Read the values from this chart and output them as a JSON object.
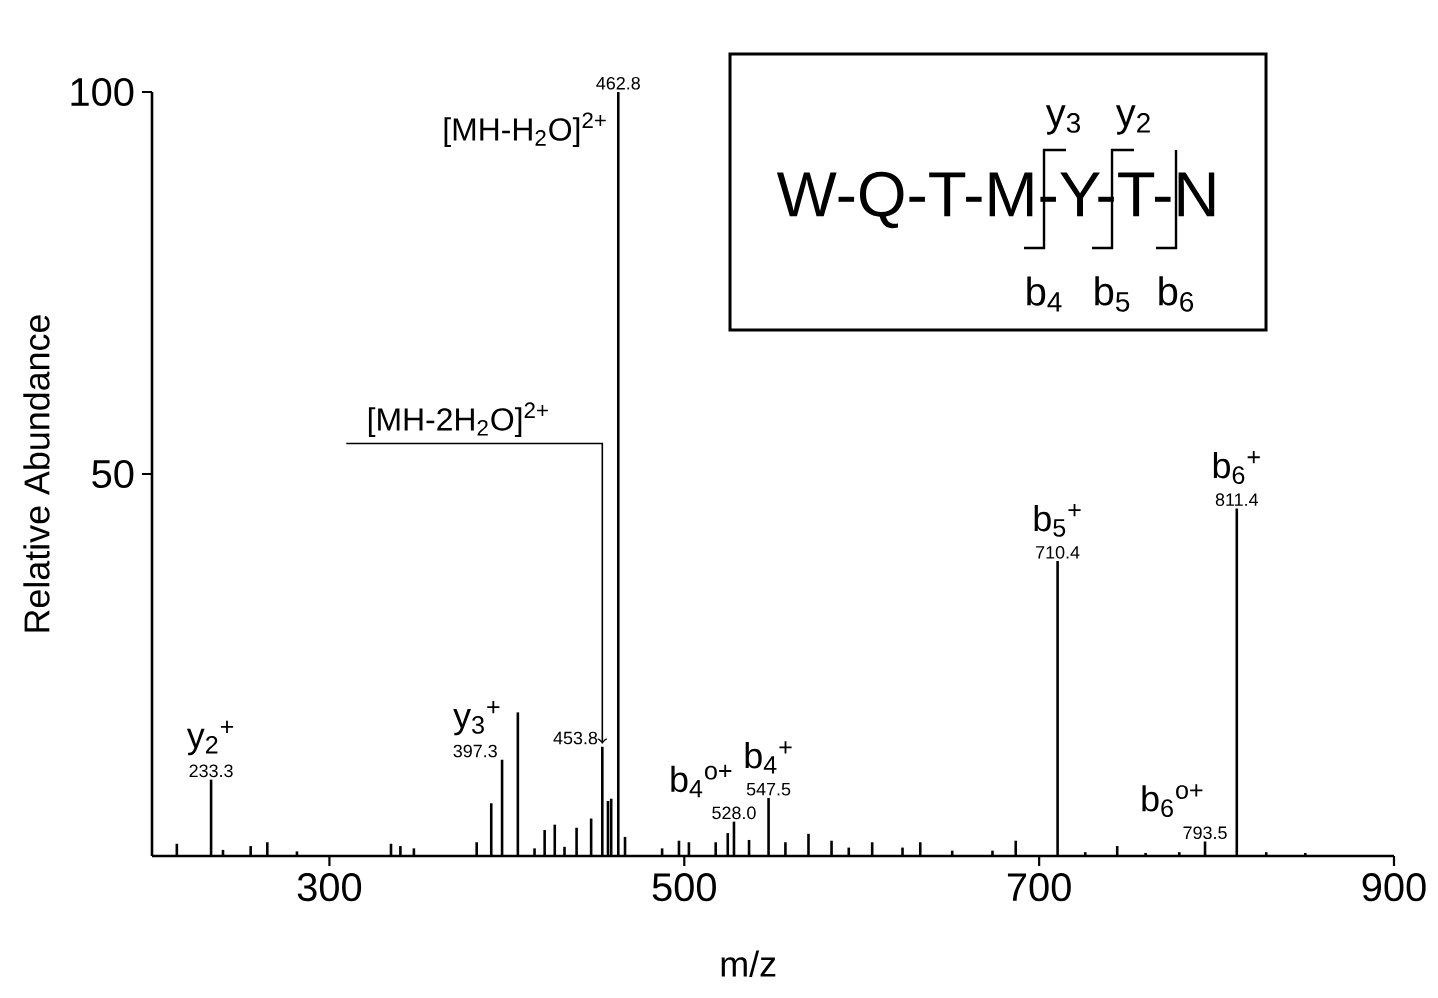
{
  "chart_data": {
    "type": "bar",
    "xlabel": "m/z",
    "ylabel": "Relative Abundance",
    "color": "#000000",
    "x": [
      214,
      233.3,
      240,
      255.6,
      265,
      281.7,
      334.7,
      340,
      347.6,
      383,
      391.2,
      397.3,
      406.2,
      415.6,
      421.3,
      427,
      432.5,
      439.3,
      447.5,
      453.8,
      457,
      458.8,
      462.8,
      466.6,
      487.5,
      497,
      502.6,
      517.7,
      524.5,
      528.0,
      536.5,
      547.5,
      557,
      570,
      583,
      592.7,
      605.9,
      623,
      633,
      651,
      673.7,
      686.8,
      710.4,
      726,
      744,
      760,
      779,
      793.5,
      811.4,
      828,
      850
    ],
    "values": [
      1.6,
      10,
      0.8,
      1.3,
      1.8,
      0.6,
      1.6,
      1.3,
      1.0,
      1.8,
      6.9,
      12.6,
      18.8,
      1.0,
      3.4,
      4.1,
      1.2,
      3.7,
      4.9,
      14.3,
      7.2,
      7.5,
      100,
      2.5,
      1.0,
      2.0,
      1.8,
      1.8,
      3.0,
      4.5,
      2.1,
      7.6,
      1.8,
      2.9,
      2.0,
      1.1,
      1.8,
      1.1,
      1.8,
      0.7,
      0.7,
      2.0,
      38.6,
      0.5,
      1.3,
      0.4,
      0.5,
      1.9,
      45.5,
      0.5,
      0.4
    ],
    "xlim": [
      200,
      900
    ],
    "ylim": [
      0,
      100
    ],
    "xticks": [
      300,
      500,
      700,
      900
    ],
    "yticks": [
      50,
      100
    ],
    "annotations": [
      {
        "text": "233.3",
        "x": 233.3,
        "y": 10
      },
      {
        "text": "y$_{2}$$^{+}$",
        "x": 233.3,
        "y": 10
      },
      {
        "text": "397.3",
        "x": 397.3,
        "y": 12.6
      },
      {
        "text": "y$_{3}$$^{+}$",
        "x": 397.3,
        "y": 12.6
      },
      {
        "text": "453.8",
        "x": 453.8,
        "y": 14.3
      },
      {
        "text": "[MH-2H$_{2}$O]$^{2+}$",
        "x": 453.8,
        "y": 14.3
      },
      {
        "text": "462.8",
        "x": 462.8,
        "y": 100
      },
      {
        "text": "[MH-H$_{2}$O]$^{2+}$",
        "x": 462.8,
        "y": 100
      },
      {
        "text": "528.0",
        "x": 528.0,
        "y": 4.5
      },
      {
        "text": "b$_{4}$$^{o+}$",
        "x": 528.0,
        "y": 4.5
      },
      {
        "text": "547.5",
        "x": 547.5,
        "y": 7.6
      },
      {
        "text": "b$_{4}$$^{+}$",
        "x": 547.5,
        "y": 7.6
      },
      {
        "text": "710.4",
        "x": 710.4,
        "y": 38.6
      },
      {
        "text": "b$_{5}$$^{+}$",
        "x": 710.4,
        "y": 38.6
      },
      {
        "text": "793.5",
        "x": 793.5,
        "y": 1.9
      },
      {
        "text": "b$_{6}$$^{o+}$",
        "x": 793.5,
        "y": 1.9
      },
      {
        "text": "811.4",
        "x": 811.4,
        "y": 45.5
      },
      {
        "text": "b$_{6}$$^{+}$",
        "x": 811.4,
        "y": 45.5
      },
      "W-Q-T-M-Y-T-N",
      "y$_{3}$",
      "y$_{2}$",
      "b$_{4}$",
      "b$_{5}$",
      "b$_{6}$"
    ]
  }
}
